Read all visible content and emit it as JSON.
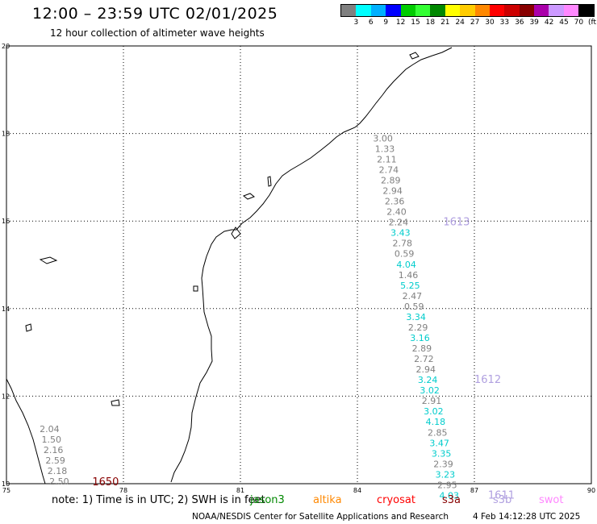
{
  "header": {
    "title": "12:00 – 23:59 UTC 02/01/2025",
    "subtitle": "12 hour collection of altimeter wave heights"
  },
  "legend": {
    "colors": [
      "#808080",
      "#00ffff",
      "#00b0ff",
      "#0000ff",
      "#00cc00",
      "#33ff33",
      "#008800",
      "#ffff00",
      "#ffcc00",
      "#ff8800",
      "#ff0000",
      "#cc0000",
      "#880000",
      "#aa00aa",
      "#cc99ff",
      "#ff88ff",
      "#000000"
    ],
    "ticks": [
      "3",
      "6",
      "9",
      "12",
      "15",
      "18",
      "21",
      "24",
      "27",
      "30",
      "33",
      "36",
      "39",
      "42",
      "45",
      "70",
      "(ft)"
    ]
  },
  "map": {
    "lon_range": [
      75,
      90
    ],
    "lat_range": [
      10,
      20
    ],
    "x_ticks": [
      "75",
      "78",
      "81",
      "84",
      "87",
      "90"
    ],
    "y_ticks": [
      "10",
      "12",
      "14",
      "16",
      "18",
      "20"
    ],
    "gridlines": true,
    "swh_values": [
      {
        "lat": 17.82,
        "lon": 84.4,
        "value": "3.00",
        "color": "#808080"
      },
      {
        "lat": 17.58,
        "lon": 84.45,
        "value": "1.33",
        "color": "#808080"
      },
      {
        "lat": 17.34,
        "lon": 84.5,
        "value": "2.11",
        "color": "#808080"
      },
      {
        "lat": 17.1,
        "lon": 84.55,
        "value": "2.74",
        "color": "#808080"
      },
      {
        "lat": 16.86,
        "lon": 84.6,
        "value": "2.89",
        "color": "#808080"
      },
      {
        "lat": 16.62,
        "lon": 84.65,
        "value": "2.94",
        "color": "#808080"
      },
      {
        "lat": 16.38,
        "lon": 84.7,
        "value": "2.36",
        "color": "#808080"
      },
      {
        "lat": 16.14,
        "lon": 84.75,
        "value": "2.40",
        "color": "#808080"
      },
      {
        "lat": 15.9,
        "lon": 84.8,
        "value": "2.24",
        "color": "#808080"
      },
      {
        "lat": 15.66,
        "lon": 84.85,
        "value": "3.43",
        "color": "#00cccc"
      },
      {
        "lat": 15.42,
        "lon": 84.9,
        "value": "2.78",
        "color": "#808080"
      },
      {
        "lat": 15.18,
        "lon": 84.95,
        "value": "0.59",
        "color": "#808080"
      },
      {
        "lat": 14.94,
        "lon": 85.0,
        "value": "4.04",
        "color": "#00cccc"
      },
      {
        "lat": 14.7,
        "lon": 85.05,
        "value": "1.46",
        "color": "#808080"
      },
      {
        "lat": 14.46,
        "lon": 85.1,
        "value": "5.25",
        "color": "#00cccc"
      },
      {
        "lat": 14.22,
        "lon": 85.15,
        "value": "2.47",
        "color": "#808080"
      },
      {
        "lat": 13.98,
        "lon": 85.2,
        "value": "0.59",
        "color": "#808080"
      },
      {
        "lat": 13.74,
        "lon": 85.25,
        "value": "3.34",
        "color": "#00cccc"
      },
      {
        "lat": 13.5,
        "lon": 85.3,
        "value": "2.29",
        "color": "#808080"
      },
      {
        "lat": 13.26,
        "lon": 85.35,
        "value": "3.16",
        "color": "#00cccc"
      },
      {
        "lat": 13.02,
        "lon": 85.4,
        "value": "2.89",
        "color": "#808080"
      },
      {
        "lat": 12.78,
        "lon": 85.45,
        "value": "2.72",
        "color": "#808080"
      },
      {
        "lat": 12.54,
        "lon": 85.5,
        "value": "2.94",
        "color": "#808080"
      },
      {
        "lat": 12.3,
        "lon": 85.55,
        "value": "3.24",
        "color": "#00cccc"
      },
      {
        "lat": 12.06,
        "lon": 85.6,
        "value": "3.02",
        "color": "#00cccc"
      },
      {
        "lat": 11.82,
        "lon": 85.65,
        "value": "2.91",
        "color": "#808080"
      },
      {
        "lat": 11.58,
        "lon": 85.7,
        "value": "3.02",
        "color": "#00cccc"
      },
      {
        "lat": 11.34,
        "lon": 85.75,
        "value": "4.18",
        "color": "#00cccc"
      },
      {
        "lat": 11.1,
        "lon": 85.8,
        "value": "2.85",
        "color": "#808080"
      },
      {
        "lat": 10.86,
        "lon": 85.85,
        "value": "3.47",
        "color": "#00cccc"
      },
      {
        "lat": 10.62,
        "lon": 85.9,
        "value": "3.35",
        "color": "#00cccc"
      },
      {
        "lat": 10.38,
        "lon": 85.95,
        "value": "2.39",
        "color": "#808080"
      },
      {
        "lat": 10.14,
        "lon": 86.0,
        "value": "3.23",
        "color": "#00cccc"
      },
      {
        "lat": 9.9,
        "lon": 86.05,
        "value": "2.95",
        "color": "#808080"
      },
      {
        "lat": 9.66,
        "lon": 86.1,
        "value": "4.03",
        "color": "#00cccc"
      },
      {
        "lat": 11.18,
        "lon": 75.85,
        "value": "2.04",
        "color": "#808080"
      },
      {
        "lat": 10.94,
        "lon": 75.9,
        "value": "1.50",
        "color": "#808080"
      },
      {
        "lat": 10.7,
        "lon": 75.95,
        "value": "2.16",
        "color": "#808080"
      },
      {
        "lat": 10.46,
        "lon": 76.0,
        "value": "2.59",
        "color": "#808080"
      },
      {
        "lat": 10.22,
        "lon": 76.05,
        "value": "2.18",
        "color": "#808080"
      },
      {
        "lat": 9.98,
        "lon": 76.1,
        "value": "2.50",
        "color": "#808080"
      }
    ],
    "pass_labels": [
      {
        "lat": 15.9,
        "lon": 86.2,
        "text": "1613",
        "color": "#b0a0e0"
      },
      {
        "lat": 12.3,
        "lon": 87.0,
        "text": "1612",
        "color": "#b0a0e0"
      },
      {
        "lat": 9.66,
        "lon": 87.35,
        "text": "1611",
        "color": "#b0a0e0"
      },
      {
        "lat": 9.96,
        "lon": 77.2,
        "text": "1650",
        "color": "#880000"
      }
    ]
  },
  "note": {
    "prefix": "note:  1) Time is in UTC; 2) SWH is in feet",
    "satellites": [
      {
        "name": "jason3",
        "color": "#008800"
      },
      {
        "name": "altika",
        "color": "#ff8800"
      },
      {
        "name": "cryosat",
        "color": "#ff0000"
      },
      {
        "name": "s3a",
        "color": "#880000"
      },
      {
        "name": "s3b",
        "color": "#b0a0e0"
      },
      {
        "name": "swot",
        "color": "#ff88ff"
      }
    ]
  },
  "footer": {
    "credit": "NOAA/NESDIS Center for Satellite Applications and Research",
    "timestamp": "4 Feb 14:12:28 UTC 2025"
  }
}
